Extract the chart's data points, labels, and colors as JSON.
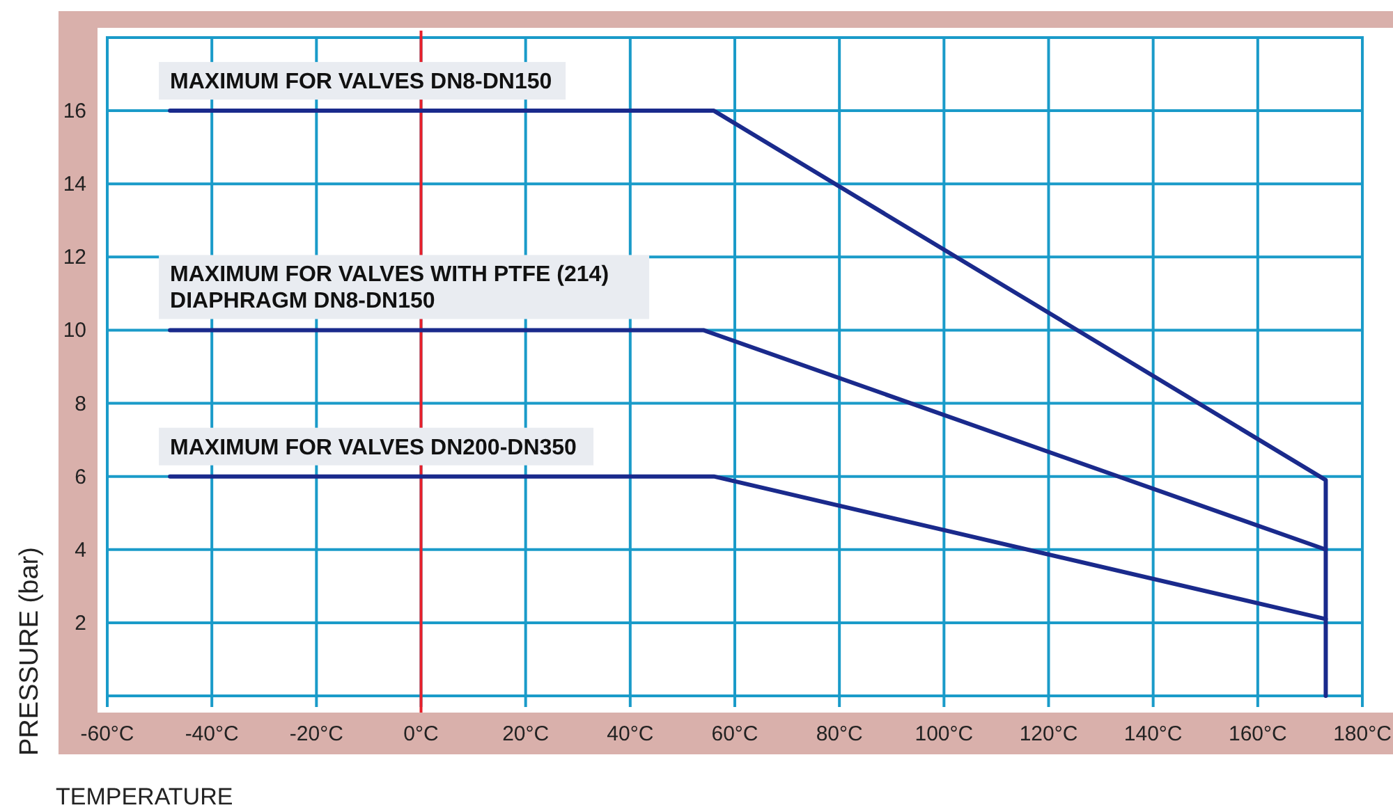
{
  "chart_data": {
    "type": "line",
    "xlabel": "TEMPERATURE",
    "ylabel": "PRESSURE (bar)",
    "xlim": [
      -60,
      180
    ],
    "ylim": [
      0,
      18
    ],
    "xticks": [
      {
        "value": -60,
        "label": "-60°C"
      },
      {
        "value": -40,
        "label": "-40°C"
      },
      {
        "value": -20,
        "label": "-20°C"
      },
      {
        "value": 0,
        "label": "0°C"
      },
      {
        "value": 20,
        "label": "20°C"
      },
      {
        "value": 40,
        "label": "40°C"
      },
      {
        "value": 60,
        "label": "60°C"
      },
      {
        "value": 80,
        "label": "80°C"
      },
      {
        "value": 100,
        "label": "100°C"
      },
      {
        "value": 120,
        "label": "120°C"
      },
      {
        "value": 140,
        "label": "140°C"
      },
      {
        "value": 160,
        "label": "160°C"
      },
      {
        "value": 180,
        "label": "180°C"
      }
    ],
    "yticks": [
      {
        "value": 0,
        "label": null
      },
      2,
      4,
      6,
      8,
      10,
      12,
      14,
      16
    ],
    "grid": true,
    "marker": "none",
    "line_style": "solid",
    "ref_lines": [
      {
        "axis": "x",
        "value": 0,
        "color": "#e8202a"
      }
    ],
    "series": [
      {
        "name": "MAXIMUM FOR VALVES DN8-DN150",
        "color": "#1a2a8c",
        "x": [
          -48,
          56,
          173,
          173
        ],
        "values": [
          16,
          16,
          5.9,
          0
        ]
      },
      {
        "name": "MAXIMUM FOR VALVES WITH PTFE (214)\nDIAPHRAGM DN8-DN150",
        "color": "#1a2a8c",
        "x": [
          -48,
          54,
          173
        ],
        "values": [
          10,
          10,
          4
        ]
      },
      {
        "name": "MAXIMUM FOR VALVES DN200-DN350",
        "color": "#1a2a8c",
        "x": [
          -48,
          56,
          173
        ],
        "values": [
          6,
          6,
          2.1
        ]
      }
    ]
  }
}
